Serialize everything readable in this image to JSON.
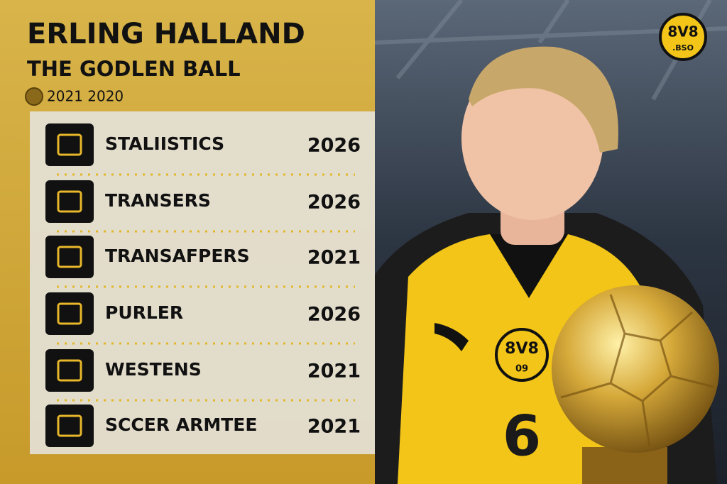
{
  "header": {
    "title": "ERLING HALLAND",
    "subtitle": "THE GODLEN BALL",
    "years": "2021 2020"
  },
  "rows": [
    {
      "label": "STALIISTICS",
      "year": "2026"
    },
    {
      "label": "TRANSERS",
      "year": "2026"
    },
    {
      "label": "TRANSAFPERS",
      "year": "2021"
    },
    {
      "label": "PURLER",
      "year": "2026"
    },
    {
      "label": "WESTENS",
      "year": "2021"
    },
    {
      "label": "SCCER ARMTEE",
      "year": "2021"
    }
  ],
  "logo": {
    "top": "8V8",
    "bottom": ".BSO"
  },
  "jersey": {
    "crest": "8V8",
    "crest_sub": "09",
    "number": "6"
  }
}
